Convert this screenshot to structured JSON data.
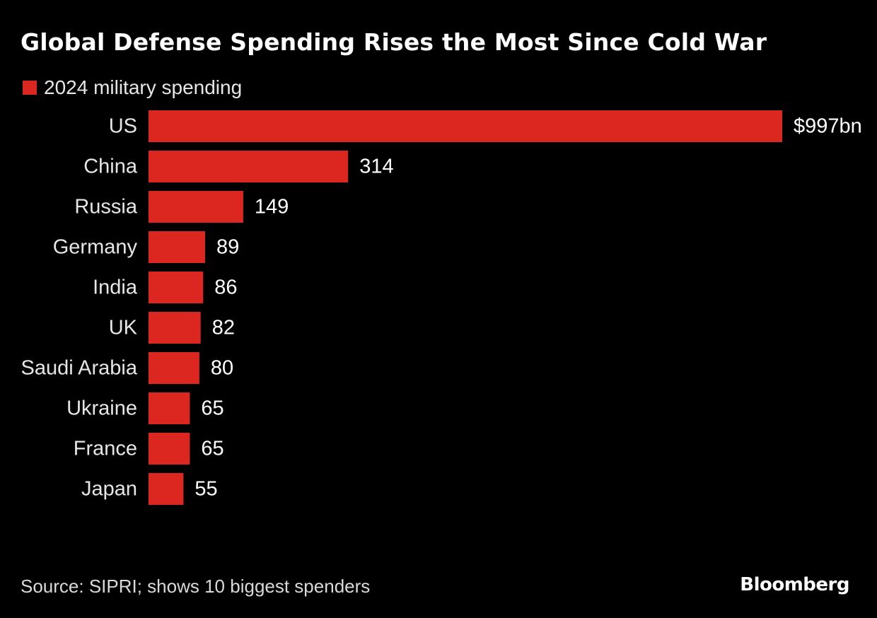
{
  "title": "Global Defense Spending Rises the Most Since Cold War",
  "colors": {
    "background": "#000000",
    "bar": "#dc2620",
    "text": "#ffffff"
  },
  "legend": {
    "label": "2024 military spending"
  },
  "source": "Source: SIPRI; shows 10 biggest spenders",
  "brand": "Bloomberg",
  "chart_data": {
    "type": "bar",
    "orientation": "horizontal",
    "title": "Global Defense Spending Rises the Most Since Cold War",
    "legend_position": "top-left",
    "grid": false,
    "categories": [
      "US",
      "China",
      "Russia",
      "Germany",
      "India",
      "UK",
      "Saudi Arabia",
      "Ukraine",
      "France",
      "Japan"
    ],
    "series": [
      {
        "name": "2024 military spending",
        "values": [
          997,
          314,
          149,
          89,
          86,
          82,
          80,
          65,
          65,
          55
        ]
      }
    ],
    "value_labels": [
      "$997bn",
      "314",
      "149",
      "89",
      "86",
      "82",
      "80",
      "65",
      "65",
      "55"
    ],
    "xlim": [
      0,
      997
    ]
  }
}
